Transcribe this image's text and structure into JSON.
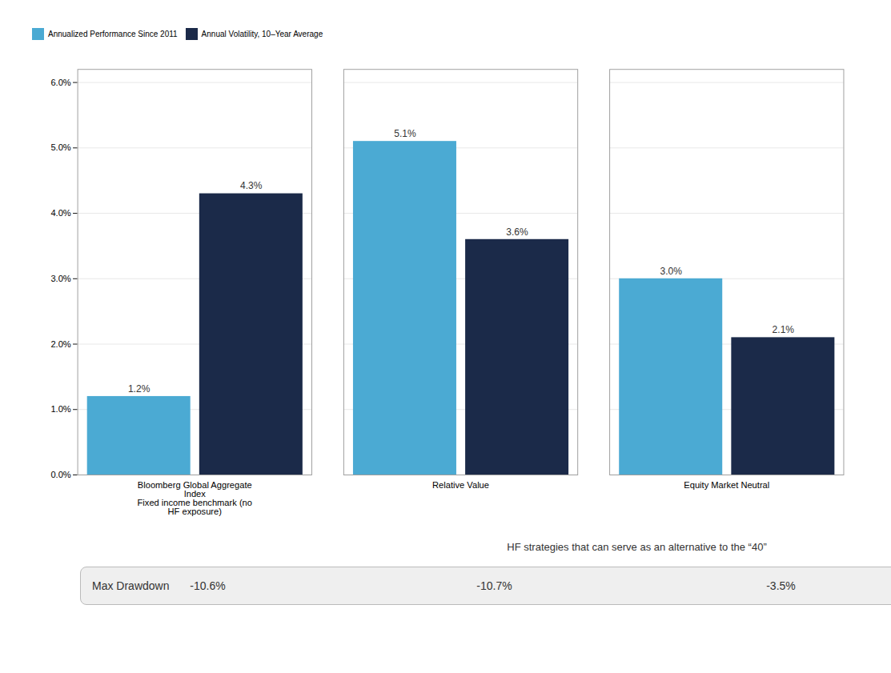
{
  "chart_data": {
    "type": "bar",
    "categories": [
      "Bloomberg Global Aggregate\nIndex\nFixed income benchmark (no\nHF exposure)",
      "Relative Value",
      "Equity Market Neutral"
    ],
    "series": [
      {
        "name": "Annualized Performance Since 2011",
        "color": "#4BAAD3",
        "values": [
          0.012,
          0.051,
          0.03
        ],
        "value_labels": [
          "1.2%",
          "5.1%",
          "3.0%"
        ]
      },
      {
        "name": "Annual Volatility, 10–Year Average",
        "color": "#1B2A49",
        "values": [
          0.043,
          0.036,
          0.021
        ],
        "value_labels": [
          "4.3%",
          "3.6%",
          "2.1%"
        ]
      }
    ],
    "ylim": [
      0,
      0.062
    ],
    "yticks": [
      {
        "value": 0,
        "label": "0.0%"
      },
      {
        "value": 0.01,
        "label": "1.0%"
      },
      {
        "value": 0.02,
        "label": "2.0%"
      },
      {
        "value": 0.03,
        "label": "3.0%"
      },
      {
        "value": 0.04,
        "label": "4.0%"
      },
      {
        "value": 0.05,
        "label": "5.0%"
      },
      {
        "value": 0.06,
        "label": "6.0%"
      }
    ],
    "grid": true,
    "legend": "top",
    "data_labels": true,
    "annotations": [
      {
        "text": "HF strategies that can serve as an alternative to the “40”",
        "categories": [
          "Relative Value",
          "Equity Market Neutral"
        ]
      }
    ],
    "max_drawdown": {
      "label": "Max Drawdown",
      "values": [
        -0.106,
        -0.107,
        -0.035
      ],
      "value_labels": [
        "-10.6%",
        "-10.7%",
        "-3.5%"
      ]
    }
  }
}
